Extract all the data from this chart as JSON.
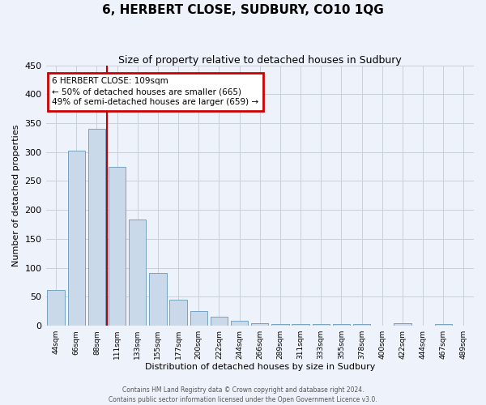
{
  "title": "6, HERBERT CLOSE, SUDBURY, CO10 1QG",
  "subtitle": "Size of property relative to detached houses in Sudbury",
  "xlabel": "Distribution of detached houses by size in Sudbury",
  "ylabel": "Number of detached properties",
  "bar_labels": [
    "44sqm",
    "66sqm",
    "88sqm",
    "111sqm",
    "133sqm",
    "155sqm",
    "177sqm",
    "200sqm",
    "222sqm",
    "244sqm",
    "266sqm",
    "289sqm",
    "311sqm",
    "333sqm",
    "355sqm",
    "378sqm",
    "400sqm",
    "422sqm",
    "444sqm",
    "467sqm",
    "489sqm"
  ],
  "bar_values": [
    62,
    303,
    340,
    275,
    183,
    91,
    45,
    25,
    16,
    8,
    4,
    3,
    3,
    3,
    3,
    3,
    0,
    4,
    0,
    3,
    0
  ],
  "bar_color": "#c9d9ea",
  "bar_edge_color": "#6699bb",
  "vline_color": "#bb0000",
  "vline_x_index": 3,
  "ylim": [
    0,
    450
  ],
  "yticks": [
    0,
    50,
    100,
    150,
    200,
    250,
    300,
    350,
    400,
    450
  ],
  "annotation_title": "6 HERBERT CLOSE: 109sqm",
  "annotation_line1": "← 50% of detached houses are smaller (665)",
  "annotation_line2": "49% of semi-detached houses are larger (659) →",
  "annotation_box_edgecolor": "#cc0000",
  "footer_line1": "Contains HM Land Registry data © Crown copyright and database right 2024.",
  "footer_line2": "Contains public sector information licensed under the Open Government Licence v3.0.",
  "grid_color": "#c8d0dc",
  "background_color": "#eef2fa",
  "title_fontsize": 11,
  "subtitle_fontsize": 9,
  "ylabel_fontsize": 8,
  "xlabel_fontsize": 8,
  "ytick_fontsize": 8,
  "xtick_fontsize": 6.5
}
